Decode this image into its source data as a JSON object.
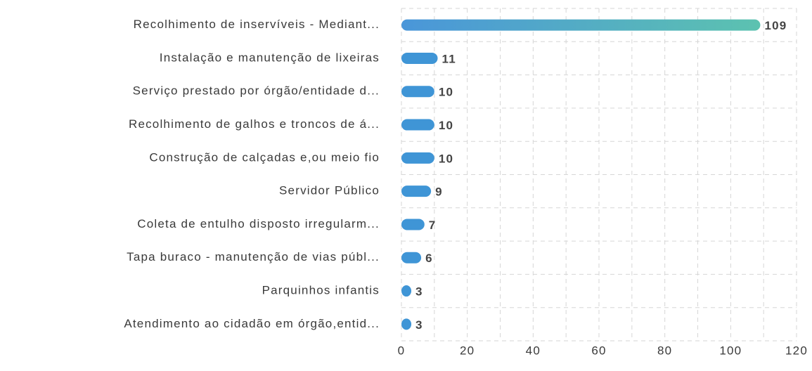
{
  "chart_data": {
    "type": "bar",
    "orientation": "horizontal",
    "categories": [
      "Recolhimento de inservíveis - Mediant...",
      "Instalação e manutenção de lixeiras",
      "Serviço prestado por órgão/entidade d...",
      "Recolhimento de galhos e troncos de á...",
      "Construção de calçadas e,ou meio fio",
      "Servidor Público",
      "Coleta de entulho disposto irregularm...",
      "Tapa buraco - manutenção de vias públ...",
      "Parquinhos infantis",
      "Atendimento ao cidadão em órgão,entid..."
    ],
    "values": [
      109,
      11,
      10,
      10,
      10,
      9,
      7,
      6,
      3,
      3
    ],
    "color": "#3f95d6",
    "highlight_gradient": [
      "#4a96d9",
      "#5cc2b0"
    ],
    "xlim": [
      0,
      120
    ],
    "xticks": [
      0,
      20,
      40,
      60,
      80,
      100,
      120
    ],
    "grid": true
  }
}
